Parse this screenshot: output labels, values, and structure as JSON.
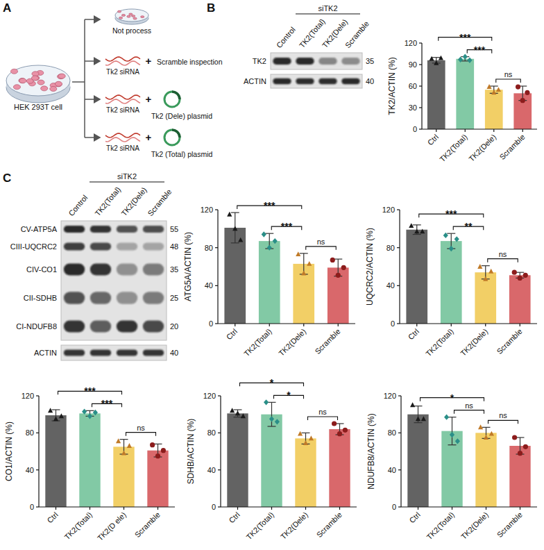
{
  "panel_labels": [
    "A",
    "B",
    "C"
  ],
  "diagram": {
    "source": "HEK 293T cell",
    "branches": [
      {
        "label": "Not process"
      },
      {
        "sirna": "Tk2 siRNA",
        "plus": "+",
        "second": "Scramble inspection"
      },
      {
        "sirna": "Tk2 siRNA",
        "plus": "+",
        "second": "Tk2 (Dele) plasmid"
      },
      {
        "sirna": "Tk2 siRNA",
        "plus": "+",
        "second": "Tk2 (Total) plasmid"
      }
    ]
  },
  "blots": [
    {
      "group_label": "siTK2",
      "lanes": [
        "Control",
        "TK2(Total)",
        "TK2(Dele)",
        "Scramble"
      ],
      "rows": [
        {
          "label": "TK2",
          "mw": 35
        },
        {
          "label": "ACTIN",
          "mw": 40
        }
      ]
    },
    {
      "group_label": "siTK2",
      "lanes": [
        "Control",
        "TK2(Total)",
        "TK2(Dele)",
        "Scramble"
      ],
      "rows": [
        {
          "label": "CV-ATP5A",
          "mw": 55
        },
        {
          "label": "CIII-UQCRC2",
          "mw": 48
        },
        {
          "label": "CIV-CO1",
          "mw": 35
        },
        {
          "label": "CII-SDHB",
          "mw": 25
        },
        {
          "label": "CI-NDUFB8",
          "mw": 20
        },
        {
          "label": "ACTIN",
          "mw": 40
        }
      ]
    }
  ],
  "chart_data": [
    {
      "type": "bar",
      "y_label": "TK2/ACTIN (%)",
      "categories": [
        "Ctrl",
        "TK2(Total)",
        "TK2(Dele)",
        "Scramble"
      ],
      "values": [
        96,
        98,
        55,
        50
      ],
      "errors": [
        4,
        3,
        5,
        10
      ],
      "points": [
        [
          98,
          92,
          99
        ],
        [
          97,
          101,
          96
        ],
        [
          59,
          51,
          55
        ],
        [
          59,
          40,
          51
        ]
      ],
      "colors": [
        "#636363",
        "#82c9a5",
        "#f2cf66",
        "#d9686b"
      ],
      "ylim": [
        0,
        120
      ],
      "yticks": [
        0,
        30,
        60,
        90,
        120
      ],
      "annotations": [
        {
          "text": "***",
          "from": "Ctrl",
          "to": "TK2(Dele)"
        },
        {
          "text": "***",
          "from": "TK2(Total)",
          "to": "TK2(Dele)"
        },
        {
          "text": "ns",
          "from": "TK2(Dele)",
          "to": "Scramble"
        }
      ]
    },
    {
      "type": "bar",
      "y_label": "ATG5A/ACTIN (%)",
      "categories": [
        "Ctrl",
        "TK2(Total)",
        "TK2(Dele)",
        "Scramble"
      ],
      "values": [
        101,
        87,
        63,
        59
      ],
      "errors": [
        16,
        8,
        11,
        9
      ],
      "points": [
        [
          115,
          100,
          88
        ],
        [
          94,
          80,
          87
        ],
        [
          73,
          53,
          63
        ],
        [
          67,
          51,
          59
        ]
      ],
      "colors": [
        "#636363",
        "#82c9a5",
        "#f2cf66",
        "#d9686b"
      ],
      "ylim": [
        0,
        120
      ],
      "yticks": [
        0,
        40,
        80,
        120
      ],
      "annotations": [
        {
          "text": "***",
          "from": "Ctrl",
          "to": "TK2(Dele)"
        },
        {
          "text": "***",
          "from": "TK2(Total)",
          "to": "TK2(Dele)"
        },
        {
          "text": "ns",
          "from": "TK2(Dele)",
          "to": "Scramble"
        }
      ]
    },
    {
      "type": "bar",
      "y_label": "UQCRC2/ACTIN (%)",
      "categories": [
        "Ctrl",
        "TK2(Total)",
        "TK2(Dele)",
        "Scramble"
      ],
      "values": [
        99,
        87,
        54,
        51
      ],
      "errors": [
        5,
        8,
        7,
        3
      ],
      "points": [
        [
          103,
          97,
          97
        ],
        [
          93,
          79,
          89
        ],
        [
          60,
          47,
          55
        ],
        [
          54,
          48,
          51
        ]
      ],
      "colors": [
        "#636363",
        "#82c9a5",
        "#f2cf66",
        "#d9686b"
      ],
      "ylim": [
        0,
        120
      ],
      "yticks": [
        0,
        40,
        80,
        120
      ],
      "annotations": [
        {
          "text": "***",
          "from": "Ctrl",
          "to": "TK2(Dele)"
        },
        {
          "text": "**",
          "from": "TK2(Total)",
          "to": "TK2(Dele)"
        },
        {
          "text": "ns",
          "from": "TK2(Dele)",
          "to": "Scramble"
        }
      ]
    },
    {
      "type": "bar",
      "y_label": "CO1/ACTIN (%)",
      "categories": [
        "Ctrl",
        "TK2(Total)",
        "TK2(D ele)",
        "Scramble"
      ],
      "values": [
        99,
        101,
        65,
        61
      ],
      "errors": [
        6,
        3,
        8,
        7
      ],
      "points": [
        [
          104,
          95,
          98
        ],
        [
          103,
          98,
          102
        ],
        [
          71,
          58,
          66
        ],
        [
          67,
          55,
          61
        ]
      ],
      "colors": [
        "#636363",
        "#82c9a5",
        "#f2cf66",
        "#d9686b"
      ],
      "ylim": [
        0,
        120
      ],
      "yticks": [
        0,
        40,
        80,
        120
      ],
      "annotations": [
        {
          "text": "***",
          "from": "Ctrl",
          "to": "TK2(D ele)"
        },
        {
          "text": "***",
          "from": "TK2(Total)",
          "to": "TK2(D ele)"
        },
        {
          "text": "ns",
          "from": "TK2(D ele)",
          "to": "Scramble"
        }
      ]
    },
    {
      "type": "bar",
      "y_label": "SDHB/ACTIN (%)",
      "categories": [
        "Ctrl",
        "TK2(Total)",
        "TK2(Dele)",
        "Scramble"
      ],
      "values": [
        101,
        100,
        74,
        84
      ],
      "errors": [
        4,
        13,
        6,
        6
      ],
      "points": [
        [
          104,
          101,
          98
        ],
        [
          113,
          95,
          92
        ],
        [
          79,
          69,
          74
        ],
        [
          90,
          79,
          83
        ]
      ],
      "colors": [
        "#636363",
        "#82c9a5",
        "#f2cf66",
        "#d9686b"
      ],
      "ylim": [
        0,
        120
      ],
      "yticks": [
        0,
        40,
        80,
        120
      ],
      "annotations": [
        {
          "text": "*",
          "from": "Ctrl",
          "to": "TK2(Dele)"
        },
        {
          "text": "*",
          "from": "TK2(Total)",
          "to": "TK2(Dele)"
        },
        {
          "text": "ns",
          "from": "TK2(Dele)",
          "to": "Scramble"
        }
      ]
    },
    {
      "type": "bar",
      "y_label": "NDUFB8/ACTIN (%)",
      "categories": [
        "Ctrl",
        "TK2(Total)",
        "TK2(Dele)",
        "Scramble"
      ],
      "values": [
        100,
        82,
        80,
        66
      ],
      "errors": [
        9,
        15,
        6,
        9
      ],
      "points": [
        [
          110,
          95,
          95
        ],
        [
          97,
          78,
          71
        ],
        [
          86,
          75,
          79
        ],
        [
          75,
          58,
          65
        ]
      ],
      "colors": [
        "#636363",
        "#82c9a5",
        "#f2cf66",
        "#d9686b"
      ],
      "ylim": [
        0,
        120
      ],
      "yticks": [
        0,
        40,
        80,
        120
      ],
      "annotations": [
        {
          "text": "*",
          "from": "Ctrl",
          "to": "TK2(Dele)"
        },
        {
          "text": "ns",
          "from": "TK2(Total)",
          "to": "TK2(Dele)"
        },
        {
          "text": "ns",
          "from": "TK2(Dele)",
          "to": "Scramble"
        }
      ]
    }
  ]
}
